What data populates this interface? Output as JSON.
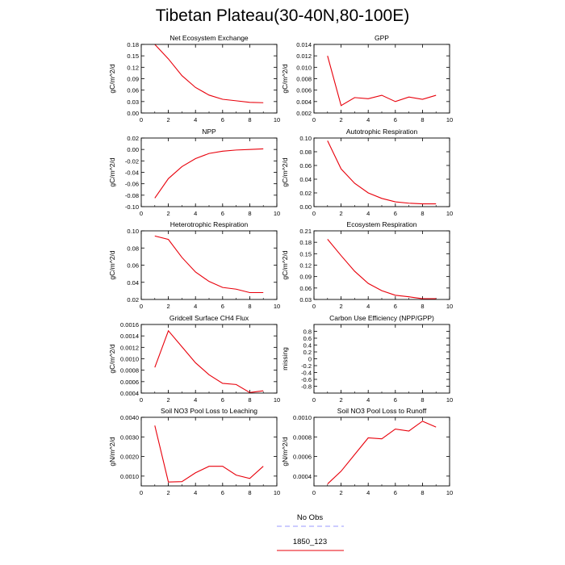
{
  "figure": {
    "title": "Tibetan Plateau(30-40N,80-100E)"
  },
  "legend": {
    "entries": [
      {
        "label": "No Obs",
        "color": "#9a9aff",
        "dashed": true
      },
      {
        "label": "1850_123",
        "color": "#e8000b",
        "dashed": false
      }
    ]
  },
  "chart_data": [
    {
      "type": "line",
      "title": "Net Ecosystem Exchange",
      "ylabel": "gC/m^2/d",
      "xlim": [
        0,
        10
      ],
      "ylim": [
        0.0,
        0.18
      ],
      "xticks": [
        0,
        2,
        4,
        6,
        8,
        10
      ],
      "xtick_labels": [
        "0",
        "2",
        "4",
        "6",
        "8",
        "10"
      ],
      "yticks": [
        0,
        0.03,
        0.06,
        0.09,
        0.12,
        0.15,
        0.18
      ],
      "ytick_labels": [
        "0.00",
        "0.03",
        "0.06",
        "0.09",
        "0.12",
        "0.15",
        "0.18"
      ],
      "series": [
        {
          "x": [
            1,
            2,
            3,
            4,
            5,
            6,
            7,
            8,
            9
          ],
          "values": [
            0.18,
            0.142,
            0.098,
            0.067,
            0.047,
            0.036,
            0.032,
            0.028,
            0.027
          ]
        }
      ]
    },
    {
      "type": "line",
      "title": "GPP",
      "ylabel": "gC/m^2/d",
      "xlim": [
        0,
        10
      ],
      "ylim": [
        0.002,
        0.014
      ],
      "xticks": [
        0,
        2,
        4,
        6,
        8,
        10
      ],
      "xtick_labels": [
        "0",
        "2",
        "4",
        "6",
        "8",
        "10"
      ],
      "yticks": [
        0.002,
        0.004,
        0.006,
        0.008,
        0.01,
        0.012,
        0.014
      ],
      "ytick_labels": [
        "0.002",
        "0.004",
        "0.006",
        "0.008",
        "0.010",
        "0.012",
        "0.014"
      ],
      "series": [
        {
          "x": [
            1,
            2,
            3,
            4,
            5,
            6,
            7,
            8,
            9
          ],
          "values": [
            0.012,
            0.0033,
            0.0047,
            0.0045,
            0.0051,
            0.004,
            0.0048,
            0.0044,
            0.0051
          ]
        }
      ]
    },
    {
      "type": "line",
      "title": "NPP",
      "ylabel": "gC/m^2/d",
      "xlim": [
        0,
        10
      ],
      "ylim": [
        -0.1,
        0.02
      ],
      "xticks": [
        0,
        2,
        4,
        6,
        8,
        10
      ],
      "xtick_labels": [
        "0",
        "2",
        "4",
        "6",
        "8",
        "10"
      ],
      "yticks": [
        -0.1,
        -0.08,
        -0.06,
        -0.04,
        -0.02,
        0.0,
        0.02
      ],
      "ytick_labels": [
        "-0.10",
        "-0.08",
        "-0.06",
        "-0.04",
        "-0.02",
        "0.00",
        "0.02"
      ],
      "series": [
        {
          "x": [
            1,
            2,
            3,
            4,
            5,
            6,
            7,
            8,
            9
          ],
          "values": [
            -0.085,
            -0.051,
            -0.03,
            -0.016,
            -0.007,
            -0.003,
            -0.001,
            0.0,
            0.001
          ]
        }
      ]
    },
    {
      "type": "line",
      "title": "Autotrophic Respiration",
      "ylabel": "gC/m^2/d",
      "xlim": [
        0,
        10
      ],
      "ylim": [
        0.0,
        0.1
      ],
      "xticks": [
        0,
        2,
        4,
        6,
        8,
        10
      ],
      "xtick_labels": [
        "0",
        "2",
        "4",
        "6",
        "8",
        "10"
      ],
      "yticks": [
        0,
        0.02,
        0.04,
        0.06,
        0.08,
        0.1
      ],
      "ytick_labels": [
        "0.00",
        "0.02",
        "0.04",
        "0.06",
        "0.08",
        "0.10"
      ],
      "series": [
        {
          "x": [
            1,
            2,
            3,
            4,
            5,
            6,
            7,
            8,
            9
          ],
          "values": [
            0.096,
            0.055,
            0.034,
            0.02,
            0.012,
            0.007,
            0.005,
            0.004,
            0.004
          ]
        }
      ]
    },
    {
      "type": "line",
      "title": "Heterotrophic Respiration",
      "ylabel": "gC/m^2/d",
      "xlim": [
        0,
        10
      ],
      "ylim": [
        0.02,
        0.1
      ],
      "xticks": [
        0,
        2,
        4,
        6,
        8,
        10
      ],
      "xtick_labels": [
        "0",
        "2",
        "4",
        "6",
        "8",
        "10"
      ],
      "yticks": [
        0.02,
        0.04,
        0.06,
        0.08,
        0.1
      ],
      "ytick_labels": [
        "0.02",
        "0.04",
        "0.06",
        "0.08",
        "0.10"
      ],
      "series": [
        {
          "x": [
            1,
            2,
            3,
            4,
            5,
            6,
            7,
            8,
            9
          ],
          "values": [
            0.094,
            0.09,
            0.069,
            0.052,
            0.041,
            0.034,
            0.032,
            0.028,
            0.028
          ]
        }
      ]
    },
    {
      "type": "line",
      "title": "Ecosystem Respiration",
      "ylabel": "gC/m^2/d",
      "xlim": [
        0,
        10
      ],
      "ylim": [
        0.03,
        0.21
      ],
      "xticks": [
        0,
        2,
        4,
        6,
        8,
        10
      ],
      "xtick_labels": [
        "0",
        "2",
        "4",
        "6",
        "8",
        "10"
      ],
      "yticks": [
        0.03,
        0.06,
        0.09,
        0.12,
        0.15,
        0.18,
        0.21
      ],
      "ytick_labels": [
        "0.03",
        "0.06",
        "0.09",
        "0.12",
        "0.15",
        "0.18",
        "0.21"
      ],
      "series": [
        {
          "x": [
            1,
            2,
            3,
            4,
            5,
            6,
            7,
            8,
            9
          ],
          "values": [
            0.188,
            0.145,
            0.104,
            0.072,
            0.053,
            0.041,
            0.037,
            0.032,
            0.032
          ]
        }
      ]
    },
    {
      "type": "line",
      "title": "Gridcell Surface CH4 Flux",
      "ylabel": "gC/m^2/d",
      "xlim": [
        0,
        10
      ],
      "ylim": [
        0.0004,
        0.0016
      ],
      "xticks": [
        0,
        2,
        4,
        6,
        8,
        10
      ],
      "xtick_labels": [
        "0",
        "2",
        "4",
        "6",
        "8",
        "10"
      ],
      "yticks": [
        0.0004,
        0.0006,
        0.0008,
        0.001,
        0.0012,
        0.0014,
        0.0016
      ],
      "ytick_labels": [
        "0.0004",
        "0.0006",
        "0.0008",
        "0.0010",
        "0.0012",
        "0.0014",
        "0.0016"
      ],
      "series": [
        {
          "x": [
            1,
            2,
            3,
            4,
            5,
            6,
            7,
            8,
            9
          ],
          "values": [
            0.00085,
            0.00149,
            0.00121,
            0.00093,
            0.00072,
            0.00057,
            0.00055,
            0.00041,
            0.00044
          ]
        }
      ]
    },
    {
      "type": "line",
      "title": "Carbon Use Efficiency (NPP/GPP)",
      "ylabel": "missing",
      "xlim": [
        0,
        10
      ],
      "ylim": [
        -1.0,
        1.0
      ],
      "xticks": [
        0,
        2,
        4,
        6,
        8,
        10
      ],
      "xtick_labels": [
        "0",
        "2",
        "4",
        "6",
        "8",
        "10"
      ],
      "yticks": [
        -0.8,
        -0.6,
        -0.4,
        -0.2,
        0,
        0.2,
        0.4,
        0.6,
        0.8
      ],
      "ytick_labels": [
        "-0.8",
        "-0.6",
        "-0.4",
        "-0.2",
        "0",
        "0.2",
        "0.4",
        "0.6",
        "0.8"
      ],
      "series": []
    },
    {
      "type": "line",
      "title": "Soil NO3 Pool Loss to Leaching",
      "ylabel": "gN/m^2/d",
      "xlim": [
        0,
        10
      ],
      "ylim": [
        0.0005,
        0.004
      ],
      "xticks": [
        0,
        2,
        4,
        6,
        8,
        10
      ],
      "xtick_labels": [
        "0",
        "2",
        "4",
        "6",
        "8",
        "10"
      ],
      "yticks": [
        0.001,
        0.002,
        0.003,
        0.004
      ],
      "ytick_labels": [
        "0.0010",
        "0.0020",
        "0.0030",
        "0.0040"
      ],
      "series": [
        {
          "x": [
            1,
            2,
            3,
            4,
            5,
            6,
            7,
            8,
            9
          ],
          "values": [
            0.00358,
            0.0007,
            0.00072,
            0.00117,
            0.0015,
            0.0015,
            0.00105,
            0.00088,
            0.0015
          ]
        }
      ]
    },
    {
      "type": "line",
      "title": "Soil NO3 Pool Loss to Runoff",
      "ylabel": "gN/m^2/d",
      "xlim": [
        0,
        10
      ],
      "ylim": [
        0.0003,
        0.001
      ],
      "xticks": [
        0,
        2,
        4,
        6,
        8,
        10
      ],
      "xtick_labels": [
        "0",
        "2",
        "4",
        "6",
        "8",
        "10"
      ],
      "yticks": [
        0.0004,
        0.0006,
        0.0008,
        0.001
      ],
      "ytick_labels": [
        "0.0004",
        "0.0006",
        "0.0008",
        "0.0010"
      ],
      "series": [
        {
          "x": [
            1,
            2,
            3,
            4,
            5,
            6,
            7,
            8,
            9
          ],
          "values": [
            0.00032,
            0.00045,
            0.00062,
            0.00079,
            0.00078,
            0.00088,
            0.00086,
            0.00096,
            0.0009
          ]
        }
      ]
    }
  ]
}
